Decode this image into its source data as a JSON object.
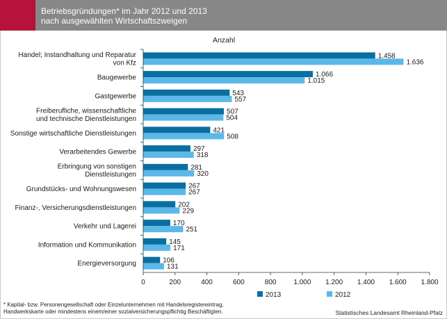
{
  "header": {
    "title_line1": "Betriebsgründungen* im Jahr  2012 und 2013",
    "title_line2": "nach ausgewählten Wirtschaftszweigen"
  },
  "colors": {
    "header_bg": "#878787",
    "accent": "#b5123c",
    "series_2013": "#0a6ea0",
    "series_2012": "#5bb8e8"
  },
  "chart_data": {
    "type": "bar",
    "orientation": "horizontal",
    "unit_label": "Anzahl",
    "categories": [
      [
        "Handel; Instandhaltung und Reparatur",
        "von Kfz"
      ],
      [
        "Baugewerbe"
      ],
      [
        "Gastgewerbe"
      ],
      [
        "Freiberufliche, wissenschaftliche",
        "und technische Dienstleistungen"
      ],
      [
        "Sonstige wirtschaftliche Dienstleistungen"
      ],
      [
        "Verarbeitendes Gewerbe"
      ],
      [
        "Erbringung von sonstigen",
        "Dienstleistungen"
      ],
      [
        "Grundstücks- und Wohnungswesen"
      ],
      [
        "Finanz-, Versicherungsdienstleistungen"
      ],
      [
        "Verkehr und Lagerei"
      ],
      [
        "Information und Kommunikation"
      ],
      [
        "Energieversorgung"
      ]
    ],
    "series": [
      {
        "name": "2013",
        "values": [
          1458,
          1066,
          543,
          507,
          421,
          297,
          281,
          267,
          202,
          170,
          145,
          106
        ],
        "labels": [
          "1.458",
          "1.066",
          "543",
          "507",
          "421",
          "297",
          "281",
          "267",
          "202",
          "170",
          "145",
          "106"
        ]
      },
      {
        "name": "2012",
        "values": [
          1636,
          1015,
          557,
          504,
          508,
          318,
          320,
          267,
          229,
          251,
          171,
          131
        ],
        "labels": [
          "1.636",
          "1.015",
          "557",
          "504",
          "508",
          "318",
          "320",
          "267",
          "229",
          "251",
          "171",
          "131"
        ]
      }
    ],
    "xlim": [
      0,
      1800
    ],
    "xticks": [
      0,
      200,
      400,
      600,
      800,
      1000,
      1200,
      1400,
      1600,
      1800
    ],
    "xtick_labels": [
      "0",
      "200",
      "400",
      "600",
      "800",
      "1.000",
      "1.200",
      "1.400",
      "1.600",
      "1.800"
    ],
    "grid": false,
    "legend_position": "bottom-right"
  },
  "footnote": {
    "line1": "* Kapital- bzw. Personengesellschaft oder Einzelunternehmen mit Handelsregistereintrag,",
    "line2": "Handwerkskarte oder mindestens einem/einer sozialversicherungspflichtig Beschäftigten."
  },
  "source": "Statistisches Landesamt Rheinland-Pfalz"
}
